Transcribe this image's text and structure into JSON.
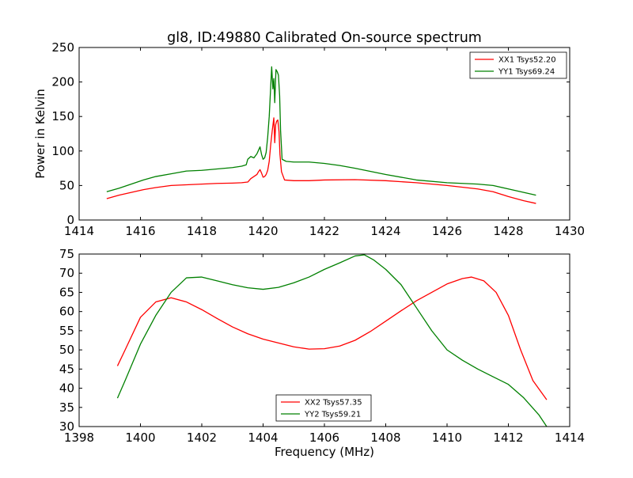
{
  "figure": {
    "title": "gl8, ID:49880 Calibrated On-source spectrum"
  },
  "chart_data": [
    {
      "type": "line",
      "title": "gl8, ID:49880 Calibrated On-source spectrum",
      "xlabel": "",
      "ylabel": "Power in Kelvin",
      "xlim": [
        1414,
        1430
      ],
      "ylim": [
        0,
        250
      ],
      "xticks": [
        1414,
        1416,
        1418,
        1420,
        1422,
        1424,
        1426,
        1428,
        1430
      ],
      "yticks": [
        0,
        50,
        100,
        150,
        200,
        250
      ],
      "grid": false,
      "legend_position": "upper right",
      "series": [
        {
          "name": "XX1 Tsys52.20",
          "color": "#ff0000",
          "points": [
            [
              1414.9,
              31
            ],
            [
              1415.3,
              36
            ],
            [
              1415.7,
              40
            ],
            [
              1416.1,
              44
            ],
            [
              1416.5,
              47
            ],
            [
              1417.0,
              50
            ],
            [
              1417.5,
              51
            ],
            [
              1418.0,
              52
            ],
            [
              1418.5,
              53
            ],
            [
              1419.0,
              53.5
            ],
            [
              1419.3,
              54
            ],
            [
              1419.5,
              55
            ],
            [
              1419.6,
              60
            ],
            [
              1419.7,
              63
            ],
            [
              1419.8,
              66
            ],
            [
              1419.85,
              70
            ],
            [
              1419.9,
              73
            ],
            [
              1419.95,
              68
            ],
            [
              1420.0,
              62
            ],
            [
              1420.05,
              63
            ],
            [
              1420.1,
              66
            ],
            [
              1420.15,
              72
            ],
            [
              1420.2,
              85
            ],
            [
              1420.25,
              110
            ],
            [
              1420.3,
              130
            ],
            [
              1420.35,
              148
            ],
            [
              1420.38,
              112
            ],
            [
              1420.41,
              138
            ],
            [
              1420.44,
              143
            ],
            [
              1420.48,
              145
            ],
            [
              1420.52,
              128
            ],
            [
              1420.55,
              95
            ],
            [
              1420.6,
              70
            ],
            [
              1420.7,
              58
            ],
            [
              1421.0,
              57
            ],
            [
              1421.5,
              57
            ],
            [
              1422.0,
              58
            ],
            [
              1423.0,
              58.5
            ],
            [
              1424.0,
              57
            ],
            [
              1425.0,
              54
            ],
            [
              1426.0,
              50
            ],
            [
              1427.0,
              45
            ],
            [
              1427.5,
              41
            ],
            [
              1428.0,
              34
            ],
            [
              1428.5,
              28
            ],
            [
              1428.9,
              24
            ]
          ]
        },
        {
          "name": "YY1 Tsys69.24",
          "color": "#008000",
          "points": [
            [
              1414.9,
              41
            ],
            [
              1415.3,
              46
            ],
            [
              1415.7,
              52
            ],
            [
              1416.1,
              58
            ],
            [
              1416.5,
              63
            ],
            [
              1417.0,
              67
            ],
            [
              1417.5,
              71
            ],
            [
              1418.0,
              72
            ],
            [
              1418.5,
              74
            ],
            [
              1419.0,
              76
            ],
            [
              1419.3,
              78
            ],
            [
              1419.45,
              80
            ],
            [
              1419.5,
              88
            ],
            [
              1419.6,
              92
            ],
            [
              1419.7,
              90
            ],
            [
              1419.8,
              96
            ],
            [
              1419.9,
              106
            ],
            [
              1419.95,
              95
            ],
            [
              1420.0,
              88
            ],
            [
              1420.05,
              90
            ],
            [
              1420.1,
              98
            ],
            [
              1420.15,
              120
            ],
            [
              1420.2,
              150
            ],
            [
              1420.25,
              195
            ],
            [
              1420.28,
              222
            ],
            [
              1420.32,
              190
            ],
            [
              1420.35,
              205
            ],
            [
              1420.38,
              170
            ],
            [
              1420.42,
              218
            ],
            [
              1420.46,
              215
            ],
            [
              1420.5,
              210
            ],
            [
              1420.54,
              180
            ],
            [
              1420.57,
              130
            ],
            [
              1420.62,
              88
            ],
            [
              1420.75,
              85
            ],
            [
              1421.0,
              84
            ],
            [
              1421.5,
              84
            ],
            [
              1422.0,
              82
            ],
            [
              1422.5,
              79
            ],
            [
              1423.0,
              75
            ],
            [
              1424.0,
              66
            ],
            [
              1425.0,
              58
            ],
            [
              1426.0,
              54
            ],
            [
              1427.0,
              52
            ],
            [
              1427.5,
              50
            ],
            [
              1428.0,
              45
            ],
            [
              1428.5,
              40
            ],
            [
              1428.9,
              36
            ]
          ]
        }
      ]
    },
    {
      "type": "line",
      "title": "",
      "xlabel": "Frequency (MHz)",
      "ylabel": "",
      "xlim": [
        1398,
        1414
      ],
      "ylim": [
        30,
        75
      ],
      "xticks": [
        1398,
        1400,
        1402,
        1404,
        1406,
        1408,
        1410,
        1412,
        1414
      ],
      "yticks": [
        30,
        35,
        40,
        45,
        50,
        55,
        60,
        65,
        70,
        75
      ],
      "grid": false,
      "legend_position": "lower center",
      "series": [
        {
          "name": "XX2 Tsys57.35",
          "color": "#ff0000",
          "points": [
            [
              1399.25,
              45.8
            ],
            [
              1399.5,
              50
            ],
            [
              1400.0,
              58.5
            ],
            [
              1400.5,
              62.5
            ],
            [
              1401.0,
              63.6
            ],
            [
              1401.5,
              62.5
            ],
            [
              1402.0,
              60.5
            ],
            [
              1402.5,
              58.2
            ],
            [
              1403.0,
              56
            ],
            [
              1403.5,
              54.2
            ],
            [
              1404.0,
              52.8
            ],
            [
              1404.5,
              51.8
            ],
            [
              1405.0,
              50.8
            ],
            [
              1405.5,
              50.2
            ],
            [
              1406.0,
              50.3
            ],
            [
              1406.5,
              51
            ],
            [
              1407.0,
              52.5
            ],
            [
              1407.5,
              54.8
            ],
            [
              1408.0,
              57.5
            ],
            [
              1408.5,
              60.2
            ],
            [
              1409.0,
              62.8
            ],
            [
              1409.5,
              65
            ],
            [
              1410.0,
              67.2
            ],
            [
              1410.5,
              68.6
            ],
            [
              1410.8,
              69
            ],
            [
              1411.2,
              68
            ],
            [
              1411.6,
              65
            ],
            [
              1412.0,
              59
            ],
            [
              1412.4,
              50
            ],
            [
              1412.8,
              42
            ],
            [
              1413.25,
              37
            ]
          ]
        },
        {
          "name": "YY2 Tsys59.21",
          "color": "#008000",
          "points": [
            [
              1399.25,
              37.4
            ],
            [
              1399.5,
              42
            ],
            [
              1400.0,
              51.5
            ],
            [
              1400.5,
              59
            ],
            [
              1401.0,
              65
            ],
            [
              1401.5,
              68.8
            ],
            [
              1402.0,
              69
            ],
            [
              1402.5,
              68
            ],
            [
              1403.0,
              67
            ],
            [
              1403.5,
              66.2
            ],
            [
              1404.0,
              65.8
            ],
            [
              1404.5,
              66.3
            ],
            [
              1405.0,
              67.5
            ],
            [
              1405.5,
              69
            ],
            [
              1406.0,
              71
            ],
            [
              1406.5,
              72.7
            ],
            [
              1407.0,
              74.5
            ],
            [
              1407.3,
              74.8
            ],
            [
              1407.6,
              73.5
            ],
            [
              1408.0,
              71
            ],
            [
              1408.5,
              67
            ],
            [
              1409.0,
              61
            ],
            [
              1409.5,
              55
            ],
            [
              1410.0,
              50
            ],
            [
              1410.5,
              47.3
            ],
            [
              1411.0,
              45
            ],
            [
              1411.5,
              43
            ],
            [
              1412.0,
              41
            ],
            [
              1412.5,
              37.5
            ],
            [
              1413.0,
              33
            ],
            [
              1413.25,
              30
            ]
          ]
        }
      ]
    }
  ]
}
